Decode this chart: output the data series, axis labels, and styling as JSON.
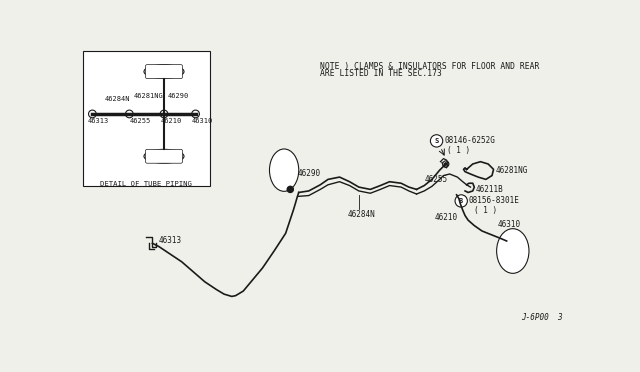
{
  "bg_color": "#f0f0ea",
  "line_color": "#1a1a1a",
  "text_color": "#1a1a1a",
  "note_line1": "NOTE ) CLAMPS & INSULATORS FOR FLOOR AND REAR",
  "note_line2": "ARE LISTED IN THE SEC.173",
  "diagram_id": "J-6P00  3",
  "detail_label": "DETAIL OF TUBE PIPING"
}
